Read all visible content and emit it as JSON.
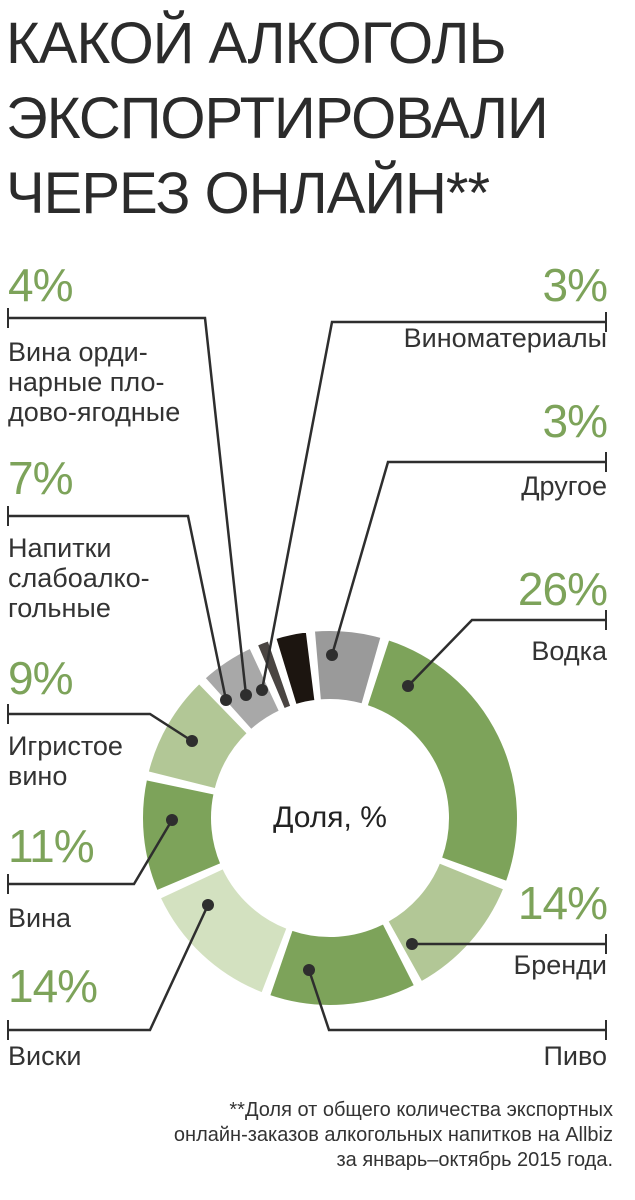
{
  "title_lines": [
    "КАКОЙ АЛКОГОЛЬ",
    "ЭКСПОРТИРОВАЛИ",
    "ЧЕРЕЗ ОНЛАЙН**"
  ],
  "center_label": "Доля, %",
  "footnote": "**Доля от общего количества экспортных\nонлайн-заказов алкогольных напитков на Allbiz\nза январь–октябрь 2015 года.",
  "chart_data": {
    "type": "pie",
    "variant": "donut",
    "categories": [
      "Виноматериалы",
      "Другое",
      "Водка",
      "Бренди",
      "Пиво",
      "Виски",
      "Вина",
      "Игристое вино",
      "Напитки слабоалкогольные",
      "Вина ординарные плодово-ягодные"
    ],
    "values": [
      3,
      3,
      26,
      14,
      null,
      14,
      11,
      9,
      7,
      4
    ],
    "value_labels": [
      "3%",
      "3%",
      "26%",
      "14%",
      "",
      "14%",
      "11%",
      "9%",
      "7%",
      "4%"
    ],
    "slice_labels": [
      "Виноматериалы",
      "Другое",
      "Водка",
      "Бренди",
      "Пиво",
      "Виски",
      "Вина",
      "Игристое\nвино",
      "Напитки\nслабоалко-\nгольные",
      "Вина орди-\nнарные пло-\nдово-ягодные"
    ],
    "colors": [
      "#1c1510",
      "#9a9a9a",
      "#7da35a",
      "#b2c796",
      "#7da35a",
      "#d3e1c0",
      "#7da35a",
      "#b2c796",
      "#a8a8a8",
      "#4a4542"
    ]
  }
}
